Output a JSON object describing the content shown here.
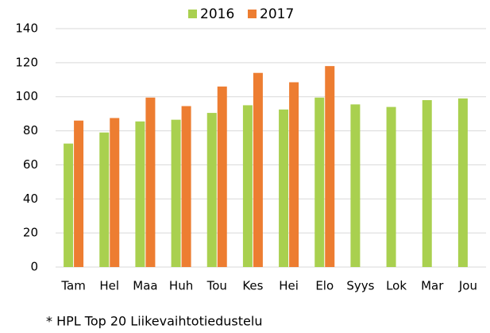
{
  "chart_data": {
    "type": "bar",
    "categories": [
      "Tam",
      "Hel",
      "Maa",
      "Huh",
      "Tou",
      "Kes",
      "Hei",
      "Elo",
      "Syys",
      "Lok",
      "Mar",
      "Jou"
    ],
    "series": [
      {
        "name": "2016",
        "color": "#a9d04f",
        "values": [
          72.5,
          79,
          85.5,
          86.5,
          90.5,
          95,
          92.5,
          99.5,
          95.5,
          94,
          98,
          99
        ]
      },
      {
        "name": "2017",
        "color": "#ed7d31",
        "values": [
          86,
          87.5,
          99.5,
          94.5,
          106,
          114,
          108.5,
          118,
          null,
          null,
          null,
          null
        ]
      }
    ],
    "ylim": [
      0,
      140
    ],
    "yticks": [
      0,
      20,
      40,
      60,
      80,
      100,
      120,
      140
    ],
    "grid": true,
    "legend": "top",
    "footnote": "* HPL Top 20 Liikevaihtotiedustelu"
  }
}
